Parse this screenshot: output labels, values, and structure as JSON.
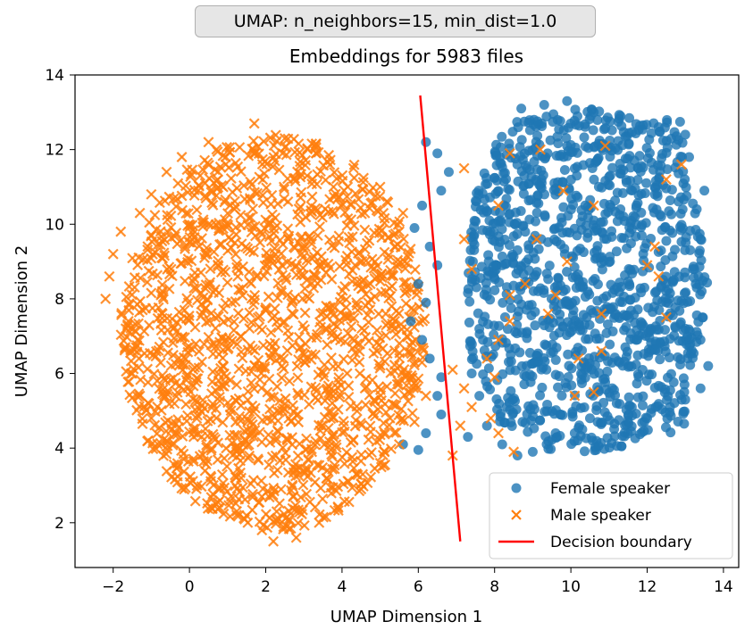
{
  "chart_data": {
    "type": "scatter",
    "suptitle": "UMAP: n_neighbors=15, min_dist=1.0",
    "title": "Embeddings for 5983 files",
    "xlabel": "UMAP Dimension 1",
    "ylabel": "UMAP Dimension 2",
    "xlim": [
      -3.0,
      14.4
    ],
    "ylim": [
      0.8,
      14.0
    ],
    "xticks": [
      "−2",
      "0",
      "2",
      "4",
      "6",
      "8",
      "10",
      "12",
      "14"
    ],
    "yticks": [
      "2",
      "4",
      "6",
      "8",
      "10",
      "12",
      "14"
    ],
    "xtick_values": [
      -2,
      0,
      2,
      4,
      6,
      8,
      10,
      12,
      14
    ],
    "ytick_values": [
      2,
      4,
      6,
      8,
      10,
      12,
      14
    ],
    "grid": false,
    "legend_position": "lower-right",
    "series": [
      {
        "name": "Female speaker",
        "marker": "circle",
        "color": "#1f77b4",
        "cluster": {
          "x_range": [
            5.5,
            13.7
          ],
          "y_range": [
            3.7,
            13.3
          ]
        },
        "points": [
          [
            6.2,
            12.2
          ],
          [
            6.5,
            11.9
          ],
          [
            6.8,
            11.4
          ],
          [
            6.6,
            10.9
          ],
          [
            6.1,
            10.5
          ],
          [
            5.9,
            9.9
          ],
          [
            6.3,
            9.4
          ],
          [
            6.5,
            8.9
          ],
          [
            6.0,
            8.4
          ],
          [
            6.2,
            7.9
          ],
          [
            5.8,
            7.4
          ],
          [
            6.1,
            6.9
          ],
          [
            6.3,
            6.4
          ],
          [
            6.6,
            5.9
          ],
          [
            6.5,
            5.4
          ],
          [
            6.6,
            4.9
          ],
          [
            6.2,
            4.4
          ],
          [
            6.0,
            3.95
          ],
          [
            5.6,
            4.1
          ],
          [
            7.3,
            4.3
          ],
          [
            9.9,
            13.3
          ],
          [
            9.3,
            13.2
          ],
          [
            8.7,
            13.1
          ],
          [
            10.6,
            13.0
          ],
          [
            11.3,
            12.9
          ],
          [
            12.3,
            12.6
          ],
          [
            13.0,
            12.4
          ],
          [
            13.1,
            11.8
          ],
          [
            13.5,
            10.9
          ],
          [
            13.3,
            10.4
          ],
          [
            13.4,
            9.6
          ],
          [
            13.2,
            8.8
          ],
          [
            13.3,
            8.3
          ],
          [
            13.0,
            7.2
          ],
          [
            13.4,
            6.9
          ],
          [
            13.6,
            6.2
          ],
          [
            13.4,
            5.6
          ],
          [
            13.0,
            5.3
          ],
          [
            12.6,
            5.1
          ],
          [
            12.0,
            4.8
          ],
          [
            11.2,
            5.2
          ],
          [
            10.5,
            4.8
          ],
          [
            10.3,
            4.5
          ],
          [
            9.6,
            4.4
          ],
          [
            9.0,
            3.9
          ],
          [
            8.6,
            3.8
          ],
          [
            8.2,
            4.1
          ],
          [
            7.8,
            4.6
          ],
          [
            7.6,
            5.4
          ],
          [
            7.4,
            6.0
          ]
        ]
      },
      {
        "name": "Male speaker",
        "marker": "x",
        "color": "#ff7f0e",
        "cluster": {
          "x_range": [
            -2.2,
            7.6
          ],
          "y_range": [
            1.4,
            12.7
          ]
        },
        "points": [
          [
            1.7,
            12.7
          ],
          [
            2.5,
            12.3
          ],
          [
            3.3,
            12.1
          ],
          [
            0.5,
            12.2
          ],
          [
            -0.2,
            11.8
          ],
          [
            -0.6,
            11.4
          ],
          [
            -1.0,
            10.8
          ],
          [
            -1.3,
            10.3
          ],
          [
            -1.8,
            9.8
          ],
          [
            -2.0,
            9.2
          ],
          [
            -2.1,
            8.6
          ],
          [
            -2.2,
            8.0
          ],
          [
            -1.6,
            7.4
          ],
          [
            -1.4,
            6.7
          ],
          [
            -1.5,
            6.0
          ],
          [
            -1.3,
            5.4
          ],
          [
            -1.0,
            4.8
          ],
          [
            -0.6,
            4.2
          ],
          [
            -0.3,
            3.5
          ],
          [
            0.2,
            3.0
          ],
          [
            0.8,
            2.6
          ],
          [
            1.3,
            2.2
          ],
          [
            1.9,
            1.8
          ],
          [
            2.2,
            1.5
          ],
          [
            2.8,
            1.6
          ],
          [
            3.4,
            2.0
          ],
          [
            3.9,
            2.4
          ],
          [
            4.5,
            2.9
          ],
          [
            5.0,
            3.6
          ],
          [
            5.5,
            4.1
          ],
          [
            5.9,
            4.7
          ],
          [
            6.2,
            5.4
          ],
          [
            5.5,
            6.2
          ],
          [
            5.7,
            7.0
          ],
          [
            5.3,
            7.8
          ],
          [
            5.0,
            8.6
          ],
          [
            5.4,
            9.4
          ],
          [
            5.6,
            10.3
          ],
          [
            5.0,
            11.0
          ],
          [
            4.3,
            11.5
          ],
          [
            7.2,
            11.5
          ],
          [
            8.4,
            11.9
          ],
          [
            9.2,
            12.0
          ],
          [
            10.9,
            12.1
          ],
          [
            12.9,
            11.6
          ],
          [
            12.5,
            11.2
          ],
          [
            9.8,
            10.9
          ],
          [
            8.1,
            10.5
          ],
          [
            10.6,
            10.5
          ],
          [
            7.2,
            9.6
          ],
          [
            9.1,
            9.6
          ],
          [
            12.2,
            9.4
          ],
          [
            7.4,
            8.8
          ],
          [
            9.9,
            9.0
          ],
          [
            12.0,
            8.9
          ],
          [
            8.4,
            8.1
          ],
          [
            8.8,
            8.4
          ],
          [
            9.6,
            8.1
          ],
          [
            12.3,
            8.6
          ],
          [
            8.4,
            7.4
          ],
          [
            8.1,
            6.9
          ],
          [
            9.4,
            7.6
          ],
          [
            10.8,
            7.6
          ],
          [
            12.5,
            7.5
          ],
          [
            7.8,
            6.4
          ],
          [
            8.0,
            5.9
          ],
          [
            10.2,
            6.4
          ],
          [
            10.8,
            6.6
          ],
          [
            7.2,
            5.6
          ],
          [
            10.1,
            5.4
          ],
          [
            10.6,
            5.5
          ],
          [
            7.4,
            5.1
          ],
          [
            7.9,
            4.8
          ],
          [
            8.1,
            4.4
          ],
          [
            8.5,
            3.9
          ],
          [
            6.9,
            3.8
          ],
          [
            7.1,
            4.6
          ],
          [
            6.9,
            6.1
          ]
        ]
      },
      {
        "name": "Decision boundary",
        "marker": "line",
        "color": "#ff0000",
        "x": [
          6.05,
          7.1
        ],
        "y": [
          13.45,
          1.5
        ]
      }
    ]
  }
}
